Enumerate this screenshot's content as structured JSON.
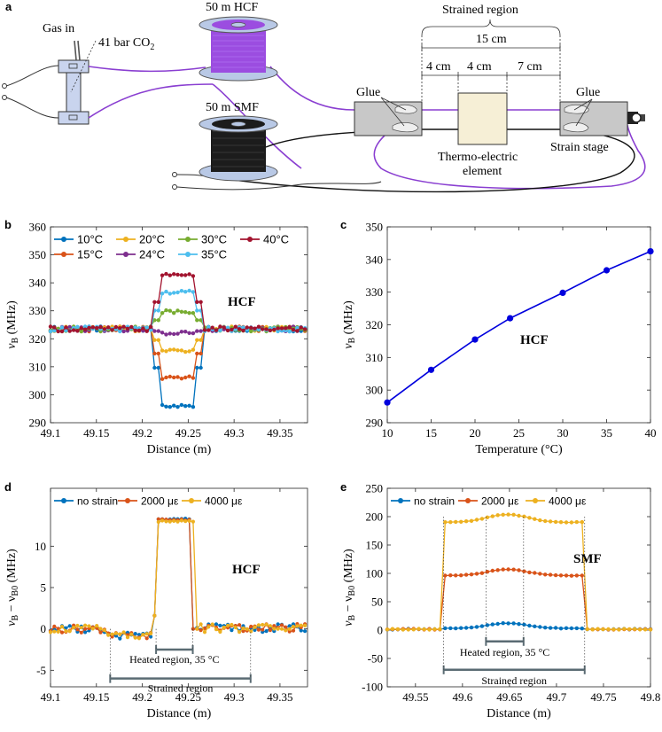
{
  "schematic": {
    "label": "a",
    "gas_in": "Gas in",
    "co2": "41 bar CO",
    "co2_sub": "2",
    "hcf": "50 m HCF",
    "smf": "50 m SMF",
    "strained_region": "Strained region",
    "dim_15": "15 cm",
    "dim_4a": "4 cm",
    "dim_4b": "4 cm",
    "dim_7": "7 cm",
    "glue_left": "Glue",
    "glue_right": "Glue",
    "thermo_line1": "Thermo-electric",
    "thermo_line2": "element",
    "strain_stage": "Strain stage",
    "colors": {
      "hcf_fiber": "#8a3fd1",
      "spool_hcf": "#9b4de0",
      "spool_smf": "#222222",
      "spool_flange": "#b9c9e6",
      "stage": "#c8c8c8"
    }
  },
  "chart_data": [
    {
      "id": "b",
      "panel_label": "b",
      "type": "line",
      "annotation": "HCF",
      "xlabel": "Distance (m)",
      "ylabel_main": "ν",
      "ylabel_sub": "B",
      "ylabel_unit": " (MHz)",
      "xlim": [
        49.1,
        49.38
      ],
      "ylim": [
        290,
        360
      ],
      "xticks": [
        "49.1",
        "49.15",
        "49.2",
        "49.25",
        "49.3",
        "49.35"
      ],
      "xtick_values": [
        49.1,
        49.15,
        49.2,
        49.25,
        49.3,
        49.35
      ],
      "yticks": [
        "290",
        "300",
        "310",
        "320",
        "330",
        "340",
        "350",
        "360"
      ],
      "ytick_values": [
        290,
        300,
        310,
        320,
        330,
        340,
        350,
        360
      ],
      "legend": "top",
      "step": {
        "x0": 49.1,
        "dx": 0.0042,
        "rise_start": 49.21,
        "rise_end": 49.218,
        "fall_start": 49.256,
        "fall_end": 49.264,
        "base": 323.5
      },
      "series": [
        {
          "name": "10°C",
          "color": "#0072bd",
          "plateau": 295.8
        },
        {
          "name": "15°C",
          "color": "#d95319",
          "plateau": 306.0
        },
        {
          "name": "20°C",
          "color": "#edb120",
          "plateau": 315.6
        },
        {
          "name": "24°C",
          "color": "#7e2f8e",
          "plateau": 322.0
        },
        {
          "name": "30°C",
          "color": "#77ac30",
          "plateau": 329.8
        },
        {
          "name": "35°C",
          "color": "#4dbeee",
          "plateau": 336.7
        },
        {
          "name": "40°C",
          "color": "#a2142f",
          "plateau": 342.8
        }
      ]
    },
    {
      "id": "c",
      "panel_label": "c",
      "type": "line",
      "annotation": "HCF",
      "xlabel": "Temperature (°C)",
      "ylabel_main": "ν",
      "ylabel_sub": "B",
      "ylabel_unit": " (MHz)",
      "xlim": [
        10,
        40
      ],
      "ylim": [
        290,
        350
      ],
      "xticks": [
        "10",
        "15",
        "20",
        "25",
        "30",
        "35",
        "40"
      ],
      "xtick_values": [
        10,
        15,
        20,
        25,
        30,
        35,
        40
      ],
      "yticks": [
        "290",
        "300",
        "310",
        "320",
        "330",
        "340",
        "350"
      ],
      "ytick_values": [
        290,
        300,
        310,
        320,
        330,
        340,
        350
      ],
      "color": "#0000dd",
      "x": [
        10,
        15,
        20,
        24,
        30,
        35,
        40
      ],
      "y": [
        296.2,
        306.2,
        315.5,
        322.0,
        329.8,
        336.7,
        342.5
      ]
    },
    {
      "id": "d",
      "panel_label": "d",
      "type": "line",
      "annotation": "HCF",
      "xlabel": "Distance (m)",
      "ylabel_main": "ν",
      "ylabel_sub": "B",
      "ylabel_mid": " − ν",
      "ylabel_sub2": "B0",
      "ylabel_unit": " (MHz)",
      "xlim": [
        49.1,
        49.38
      ],
      "ylim": [
        -7,
        17
      ],
      "xticks": [
        "49.1",
        "49.15",
        "49.2",
        "49.25",
        "49.3",
        "49.35"
      ],
      "xtick_values": [
        49.1,
        49.15,
        49.2,
        49.25,
        49.3,
        49.35
      ],
      "yticks": [
        "-5",
        "0",
        "5",
        "10"
      ],
      "ytick_values": [
        -5,
        0,
        5,
        10
      ],
      "legend": "top",
      "series": [
        {
          "name": "no strain",
          "color": "#0072bd",
          "plateau": 13.3,
          "fall": 49.252
        },
        {
          "name": "2000 με",
          "color": "#d95319",
          "plateau": 13.2,
          "fall": 49.254
        },
        {
          "name": "4000 με",
          "color": "#edb120",
          "plateau": 13.0,
          "fall": 49.256
        }
      ],
      "heated_region": {
        "label": "Heated region, 35 °C",
        "x0": 49.215,
        "x1": 49.255
      },
      "strained_region": {
        "label": "Strained region",
        "x0": 49.165,
        "x1": 49.318
      }
    },
    {
      "id": "e",
      "panel_label": "e",
      "type": "line",
      "annotation": "SMF",
      "xlabel": "Distance (m)",
      "ylabel_main": "ν",
      "ylabel_sub": "B",
      "ylabel_mid": " − ν",
      "ylabel_sub2": "B0",
      "ylabel_unit": " (MHz)",
      "xlim": [
        49.52,
        49.8
      ],
      "ylim": [
        -100,
        250
      ],
      "xticks": [
        "49.55",
        "49.6",
        "49.65",
        "49.7",
        "49.75",
        "49.8"
      ],
      "xtick_values": [
        49.55,
        49.6,
        49.65,
        49.7,
        49.75,
        49.8
      ],
      "yticks": [
        "-100",
        "-50",
        "0",
        "50",
        "100",
        "150",
        "200",
        "250"
      ],
      "ytick_values": [
        -100,
        -50,
        0,
        50,
        100,
        150,
        200,
        250
      ],
      "legend": "top",
      "series": [
        {
          "name": "no strain",
          "color": "#0072bd",
          "plateau": 3,
          "bump": 9
        },
        {
          "name": "2000 με",
          "color": "#d95319",
          "plateau": 96,
          "bump": 11
        },
        {
          "name": "4000 με",
          "color": "#edb120",
          "plateau": 190,
          "bump": 14
        }
      ],
      "heated_region": {
        "label": "Heated region, 35 °C",
        "x0": 49.625,
        "x1": 49.665
      },
      "strained_region": {
        "label": "Strained region",
        "x0": 49.58,
        "x1": 49.73
      }
    }
  ]
}
